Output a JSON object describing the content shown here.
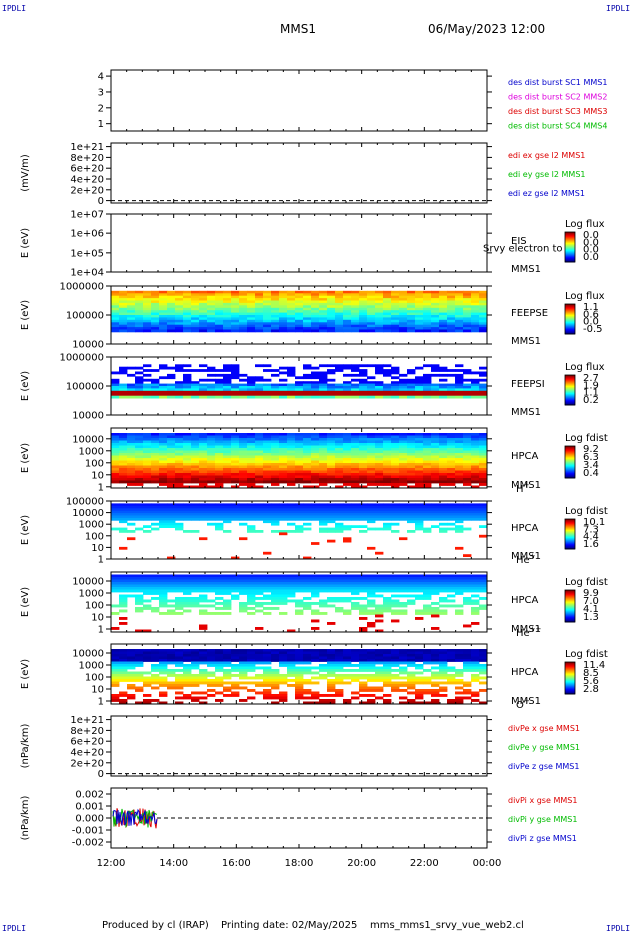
{
  "corners": {
    "tl": "IPDLI",
    "tr": "IPDLI",
    "bl": "IPDLI",
    "br": "IPDLI"
  },
  "header": {
    "title": "MMS1",
    "datetime": "06/May/2023 12:00"
  },
  "footer": {
    "produced": "Produced by cl (IRAP)",
    "printing": "Printing date: 02/May/2025",
    "file": "mms_mms1_srvy_vue_web2.cl"
  },
  "colors": {
    "black": "#000000",
    "blue": "#0000cc",
    "magenta": "#dd00dd",
    "red": "#dd0000",
    "green": "#00bb00"
  },
  "chart_data": {
    "type": "heatmap",
    "x_ticks": [
      "12:00",
      "14:00",
      "16:00",
      "18:00",
      "20:00",
      "22:00",
      "00:00"
    ],
    "panels": [
      {
        "id": "p1",
        "type": "line",
        "ylabel": "",
        "yticks": [
          "4",
          "3",
          "2",
          "1"
        ],
        "legend": [
          {
            "text": "des dist burst SC1 MMS1",
            "color": "#0000cc"
          },
          {
            "text": "des dist burst SC2 MMS2",
            "color": "#dd00dd"
          },
          {
            "text": "des dist burst SC3 MMS3",
            "color": "#dd0000"
          },
          {
            "text": "des dist burst SC4 MMS4",
            "color": "#00bb00"
          }
        ]
      },
      {
        "id": "p2",
        "type": "line",
        "ylabel": "(mV/m)",
        "yticks": [
          "1e+21",
          "8e+20",
          "6e+20",
          "4e+20",
          "2e+20",
          "0"
        ],
        "legend": [
          {
            "text": "edi ex gse l2 MMS1",
            "color": "#dd0000"
          },
          {
            "text": "edi ey gse l2 MMS1",
            "color": "#00bb00"
          },
          {
            "text": "edi ez gse l2 MMS1",
            "color": "#0000cc"
          }
        ]
      },
      {
        "id": "p3",
        "type": "heatmap",
        "ylabel": "E (eV)",
        "yticks": [
          "1e+07",
          "1e+06",
          "1e+05",
          "1e+04"
        ],
        "labels": [
          "EIS",
          "MMS1"
        ],
        "overlay": "Srvy electron to",
        "cbar": {
          "title": "Log flux",
          "ticks": [
            "0.0",
            "0.0",
            "0.0",
            "0.0"
          ]
        }
      },
      {
        "id": "p4",
        "type": "heatmap",
        "ylabel": "E (eV)",
        "yticks": [
          "1000000",
          "100000",
          "10000"
        ],
        "labels": [
          "FEEPSE",
          "MMS1"
        ],
        "cbar": {
          "title": "Log flux",
          "ticks": [
            "1.1",
            "0.6",
            "0.0",
            "-0.5"
          ]
        }
      },
      {
        "id": "p5",
        "type": "heatmap",
        "ylabel": "E (eV)",
        "yticks": [
          "1000000",
          "100000",
          "10000"
        ],
        "labels": [
          "FEEPSI",
          "MMS1"
        ],
        "cbar": {
          "title": "Log flux",
          "ticks": [
            "2.7",
            "1.9",
            "1.1",
            "0.2"
          ]
        }
      },
      {
        "id": "p6",
        "type": "heatmap",
        "ylabel": "E (eV)",
        "yticks": [
          "10000",
          "1000",
          "100",
          "10",
          "1"
        ],
        "labels": [
          "HPCA",
          "MMS1",
          "H+"
        ],
        "cbar": {
          "title": "Log fdist",
          "ticks": [
            "9.2",
            "6.3",
            "3.4",
            "0.4"
          ]
        }
      },
      {
        "id": "p7",
        "type": "heatmap",
        "ylabel": "E (eV)",
        "yticks": [
          "100000",
          "10000",
          "1000",
          "100",
          "10",
          "1"
        ],
        "labels": [
          "HPCA",
          "MMS1",
          "He+"
        ],
        "cbar": {
          "title": "Log fdist",
          "ticks": [
            "10.1",
            "7.3",
            "4.4",
            "1.6"
          ]
        }
      },
      {
        "id": "p8",
        "type": "heatmap",
        "ylabel": "E (eV)",
        "yticks": [
          "10000",
          "1000",
          "100",
          "10",
          "1"
        ],
        "labels": [
          "HPCA",
          "MMS1",
          "He++"
        ],
        "cbar": {
          "title": "Log fdist",
          "ticks": [
            "9.9",
            "7.0",
            "4.1",
            "1.3"
          ]
        }
      },
      {
        "id": "p9",
        "type": "heatmap",
        "ylabel": "E (eV)",
        "yticks": [
          "10000",
          "1000",
          "100",
          "10",
          "1"
        ],
        "labels": [
          "HPCA",
          "MMS1",
          "O+"
        ],
        "cbar": {
          "title": "Log fdist",
          "ticks": [
            "11.4",
            "8.5",
            "5.6",
            "2.8"
          ]
        }
      },
      {
        "id": "p10",
        "type": "line",
        "ylabel": "(nPa/km)",
        "yticks": [
          "1e+21",
          "8e+20",
          "6e+20",
          "4e+20",
          "2e+20",
          "0"
        ],
        "legend": [
          {
            "text": "divPe x gse MMS1",
            "color": "#dd0000"
          },
          {
            "text": "divPe y gse MMS1",
            "color": "#00bb00"
          },
          {
            "text": "divPe z gse MMS1",
            "color": "#0000cc"
          }
        ]
      },
      {
        "id": "p11",
        "type": "line",
        "ylabel": "(nPa/km)",
        "yticks": [
          "0.002",
          "0.001",
          "0.000",
          "-0.001",
          "-0.002"
        ],
        "ylim": [
          -0.0025,
          0.0025
        ],
        "legend": [
          {
            "text": "divPi x gse MMS1",
            "color": "#dd0000"
          },
          {
            "text": "divPi y gse MMS1",
            "color": "#00bb00"
          },
          {
            "text": "divPi z gse MMS1",
            "color": "#0000cc"
          }
        ]
      }
    ]
  }
}
